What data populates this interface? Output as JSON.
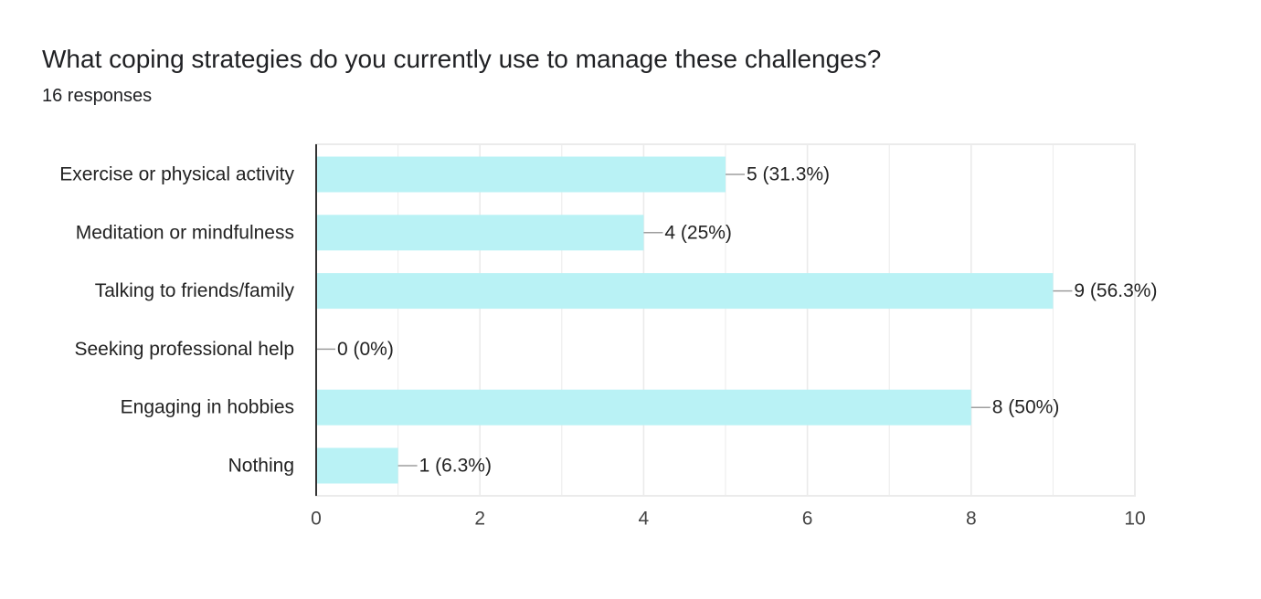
{
  "question": {
    "title": "What coping strategies do you currently use to manage these challenges?",
    "responses": "16 responses"
  },
  "colors": {
    "bar": "#b9f2f5",
    "grid": "#ebebeb",
    "axis": "#333333",
    "leader": "#9e9e9e"
  },
  "chart_data": {
    "type": "bar",
    "orientation": "horizontal",
    "title": "What coping strategies do you currently use to manage these challenges?",
    "categories": [
      "Exercise or physical activity",
      "Meditation or mindfulness",
      "Talking to friends/family",
      "Seeking professional help",
      "Engaging in hobbies",
      "Nothing"
    ],
    "values": [
      5,
      4,
      9,
      0,
      8,
      1
    ],
    "data_labels": [
      "5 (31.3%)",
      "4 (25%)",
      "9 (56.3%)",
      "0 (0%)",
      "8 (50%)",
      "1 (6.3%)"
    ],
    "xlim": [
      0,
      10
    ],
    "xticks": [
      0,
      2,
      4,
      6,
      8,
      10
    ],
    "tick_labels": [
      "0",
      "2",
      "4",
      "6",
      "8",
      "10"
    ],
    "grid": true,
    "legend": "none"
  }
}
